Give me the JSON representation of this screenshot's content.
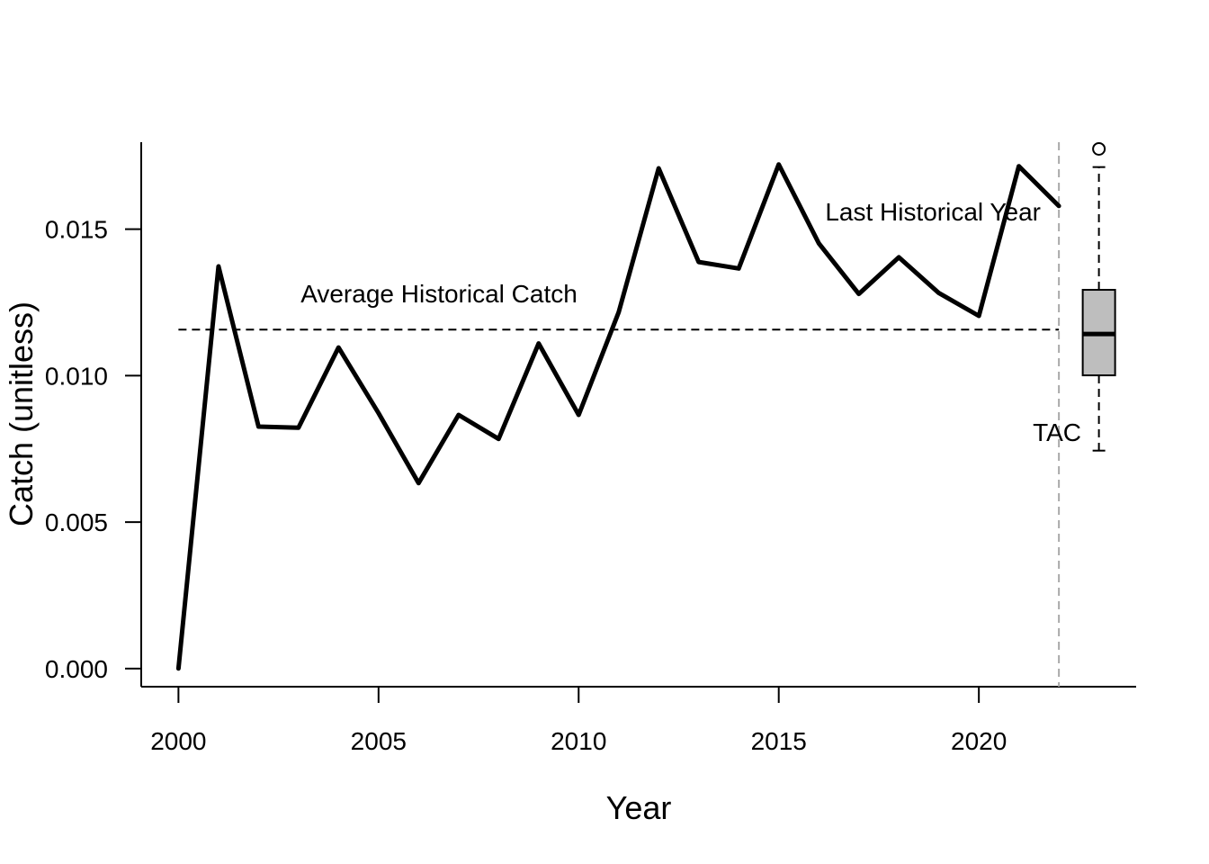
{
  "chart_data": {
    "type": "line",
    "xlabel": "Year",
    "ylabel": "Catch (unitless)",
    "xlim": [
      1999.07,
      2023.93
    ],
    "ylim": [
      -0.00062,
      0.01797
    ],
    "x_ticks": [
      2000,
      2005,
      2010,
      2015,
      2020
    ],
    "y_ticks": [
      0.0,
      0.005,
      0.01,
      0.015
    ],
    "x_tick_labels": [
      "2000",
      "2005",
      "2010",
      "2015",
      "2020"
    ],
    "y_tick_labels": [
      "0.000",
      "0.005",
      "0.010",
      "0.015"
    ],
    "grid": false,
    "series": [
      {
        "x": [
          2000,
          2001,
          2002,
          2003,
          2004,
          2005,
          2006,
          2007,
          2008,
          2009,
          2010,
          2011,
          2012,
          2013,
          2014,
          2015,
          2016,
          2017,
          2018,
          2019,
          2020,
          2021,
          2022
        ],
        "values": [
          0.0,
          0.01373,
          0.00826,
          0.00822,
          0.01096,
          0.00872,
          0.00633,
          0.00866,
          0.00784,
          0.0111,
          0.00866,
          0.01217,
          0.01708,
          0.01388,
          0.01366,
          0.01721,
          0.01452,
          0.01279,
          0.01404,
          0.01282,
          0.01204,
          0.01715,
          0.01579
        ],
        "color": "#000000"
      }
    ],
    "average_line": {
      "value": 0.01157,
      "label": "Average Historical Catch"
    },
    "last_year_line": {
      "x": 2022,
      "label": "Last Historical Year"
    },
    "boxplot": {
      "x": 2023,
      "whisker_low": 0.00744,
      "q1": 0.01001,
      "median": 0.01142,
      "q3": 0.01293,
      "whisker_high": 0.01712,
      "outlier": 0.01774,
      "label": "TAC",
      "fill": "#bebebe"
    }
  }
}
